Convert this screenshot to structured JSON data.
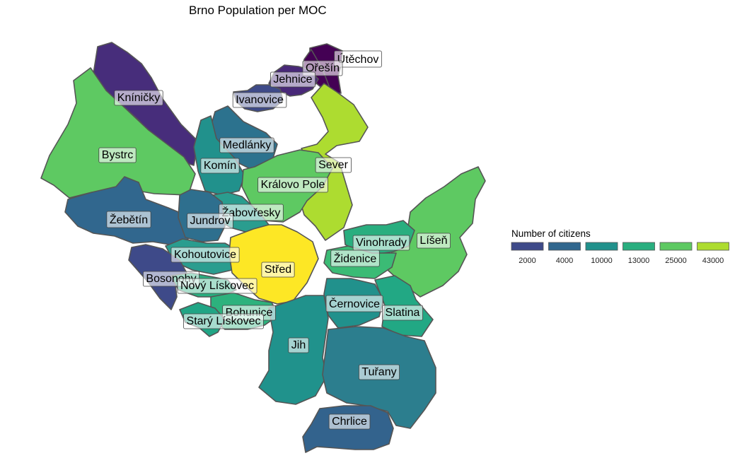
{
  "title": "Brno Population per MOC",
  "legend": {
    "title": "Number of citizens",
    "items": [
      {
        "label": "2000",
        "color": "#3e4a89"
      },
      {
        "label": "4000",
        "color": "#31678e"
      },
      {
        "label": "10000",
        "color": "#21918c"
      },
      {
        "label": "13000",
        "color": "#29ae7f"
      },
      {
        "label": "25000",
        "color": "#5ec962"
      },
      {
        "label": "43000",
        "color": "#addc30"
      }
    ]
  },
  "districts": [
    {
      "name": "Útěchov",
      "color": "#440154"
    },
    {
      "name": "Ořešín",
      "color": "#440154"
    },
    {
      "name": "Jehnice",
      "color": "#482878"
    },
    {
      "name": "Ivanovice",
      "color": "#3e4a89"
    },
    {
      "name": "Kníničky",
      "color": "#472d7b"
    },
    {
      "name": "Bystrc",
      "color": "#5ec962"
    },
    {
      "name": "Medlánky",
      "color": "#2c728e"
    },
    {
      "name": "Komín",
      "color": "#21918c"
    },
    {
      "name": "Sever",
      "color": "#addc30"
    },
    {
      "name": "Královo Pole",
      "color": "#5ec962"
    },
    {
      "name": "Žabovřesky",
      "color": "#2a9d8f"
    },
    {
      "name": "Žebětín",
      "color": "#31678e"
    },
    {
      "name": "Jundrov",
      "color": "#2e6f8e"
    },
    {
      "name": "Líšeň",
      "color": "#5ec962"
    },
    {
      "name": "Vinohrady",
      "color": "#29ae7f"
    },
    {
      "name": "Židenice",
      "color": "#3bbb75"
    },
    {
      "name": "Kohoutovice",
      "color": "#2a9d8f"
    },
    {
      "name": "Střed",
      "color": "#fde725"
    },
    {
      "name": "Bosonohy",
      "color": "#3e4a89"
    },
    {
      "name": "Nový Lískovec",
      "color": "#29ae7f"
    },
    {
      "name": "Černovice",
      "color": "#21918c"
    },
    {
      "name": "Slatina",
      "color": "#22a884"
    },
    {
      "name": "Bohunice",
      "color": "#2db27d"
    },
    {
      "name": "Starý Lískovec",
      "color": "#21a585"
    },
    {
      "name": "Jih",
      "color": "#20928c"
    },
    {
      "name": "Tuřany",
      "color": "#2c7e8e"
    },
    {
      "name": "Chrlice",
      "color": "#33638d"
    }
  ]
}
